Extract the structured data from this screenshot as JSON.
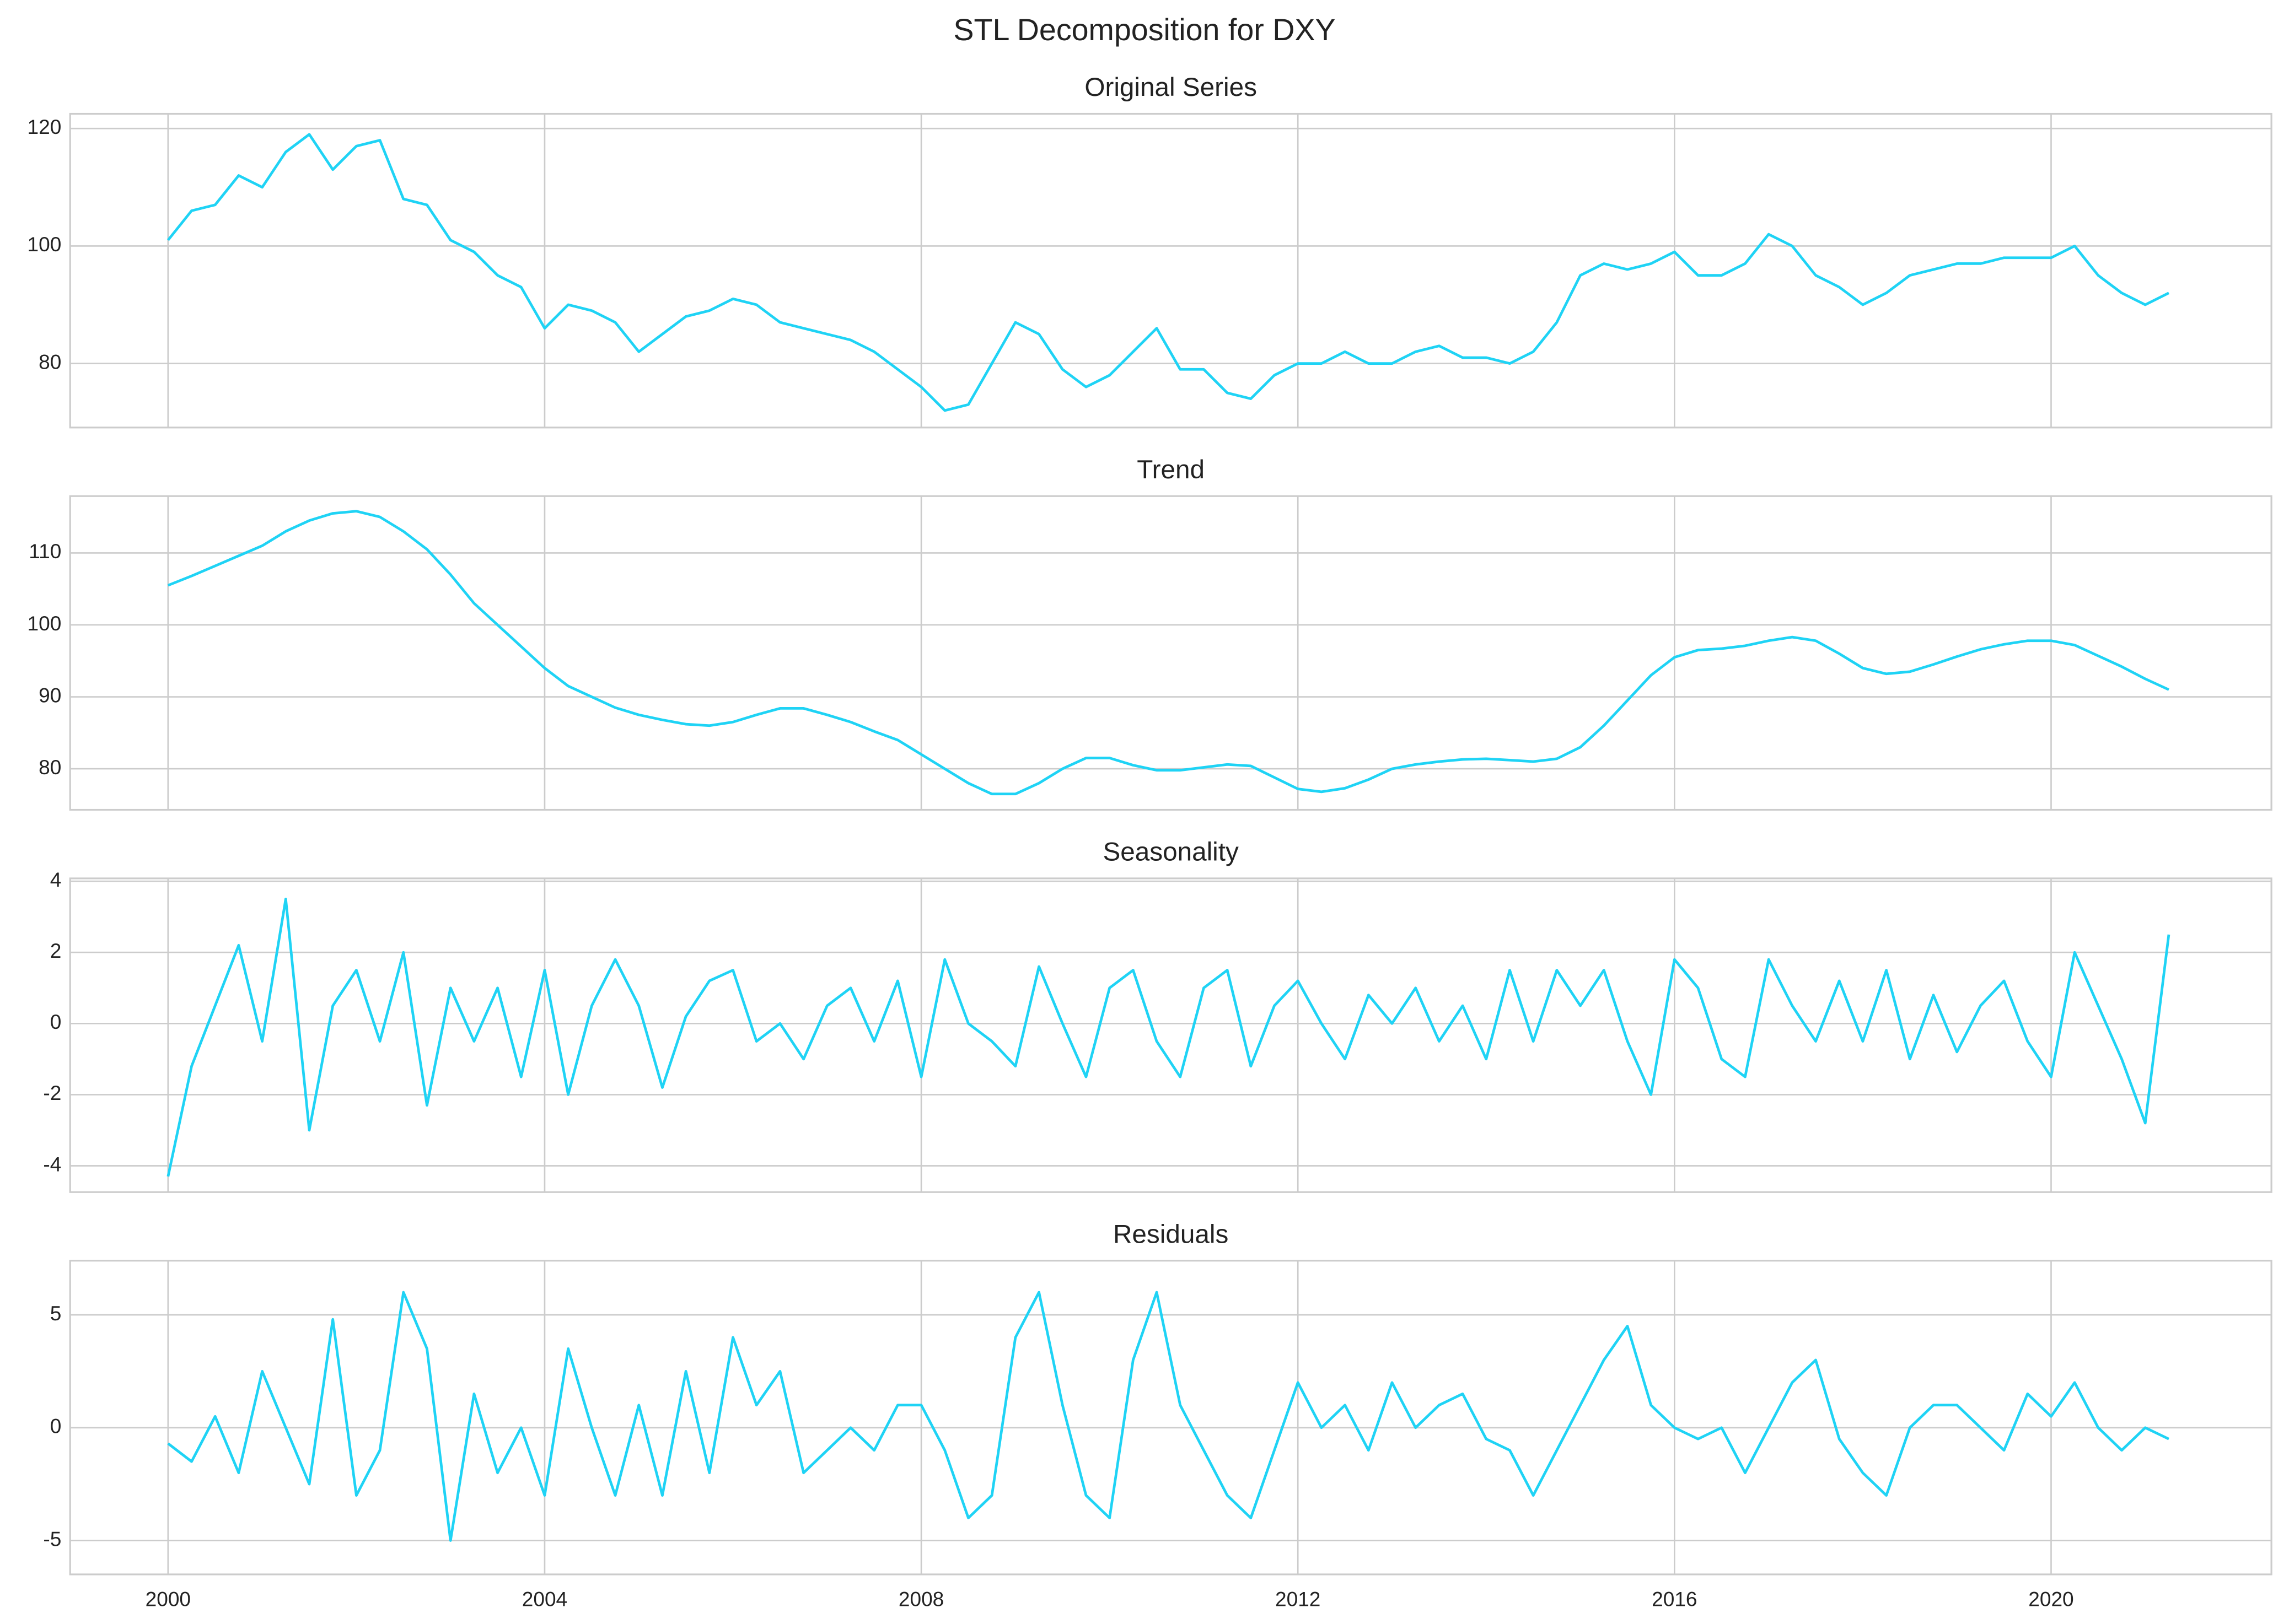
{
  "title": "STL Decomposition for DXY",
  "chart_data": [
    {
      "type": "line",
      "title": "Original Series",
      "color": "#1fd3f5",
      "grid": true,
      "x": [
        2000,
        2000.25,
        2000.5,
        2000.75,
        2001,
        2001.25,
        2001.5,
        2001.75,
        2002,
        2002.25,
        2002.5,
        2002.75,
        2003,
        2003.25,
        2003.5,
        2003.75,
        2004,
        2004.25,
        2004.5,
        2004.75,
        2005,
        2005.25,
        2005.5,
        2005.75,
        2006,
        2006.25,
        2006.5,
        2006.75,
        2007,
        2007.25,
        2007.5,
        2007.75,
        2008,
        2008.25,
        2008.5,
        2008.75,
        2009,
        2009.25,
        2009.5,
        2009.75,
        2010,
        2010.25,
        2010.5,
        2010.75,
        2011,
        2011.25,
        2011.5,
        2011.75,
        2012,
        2012.25,
        2012.5,
        2012.75,
        2013,
        2013.25,
        2013.5,
        2013.75,
        2014,
        2014.25,
        2014.5,
        2014.75,
        2015,
        2015.25,
        2015.5,
        2015.75,
        2016,
        2016.25,
        2016.5,
        2016.75,
        2017,
        2017.25,
        2017.5,
        2017.75,
        2018,
        2018.25,
        2018.5,
        2018.75,
        2019,
        2019.25,
        2019.5,
        2019.75,
        2020,
        2020.25,
        2020.5,
        2020.75,
        2021,
        2021.25
      ],
      "values": [
        101,
        106,
        107,
        112,
        110,
        116,
        119,
        113,
        117,
        118,
        108,
        107,
        101,
        99,
        95,
        93,
        86,
        90,
        89,
        87,
        82,
        85,
        88,
        89,
        91,
        90,
        87,
        86,
        85,
        84,
        82,
        79,
        76,
        72,
        73,
        80,
        87,
        85,
        79,
        76,
        78,
        82,
        86,
        79,
        79,
        75,
        74,
        78,
        80,
        80,
        82,
        80,
        80,
        82,
        83,
        81,
        81,
        80,
        82,
        87,
        95,
        97,
        96,
        97,
        99,
        95,
        95,
        97,
        102,
        100,
        95,
        93,
        90,
        92,
        95,
        96,
        97,
        97,
        98,
        98,
        98,
        100,
        95,
        92,
        90,
        92
      ],
      "ylim": [
        69.1,
        122.5
      ],
      "yticks": [
        80,
        100,
        120
      ]
    },
    {
      "type": "line",
      "title": "Trend",
      "color": "#1fd3f5",
      "grid": true,
      "x": [
        2000,
        2000.25,
        2000.5,
        2000.75,
        2001,
        2001.25,
        2001.5,
        2001.75,
        2002,
        2002.25,
        2002.5,
        2002.75,
        2003,
        2003.25,
        2003.5,
        2003.75,
        2004,
        2004.25,
        2004.5,
        2004.75,
        2005,
        2005.25,
        2005.5,
        2005.75,
        2006,
        2006.25,
        2006.5,
        2006.75,
        2007,
        2007.25,
        2007.5,
        2007.75,
        2008,
        2008.25,
        2008.5,
        2008.75,
        2009,
        2009.25,
        2009.5,
        2009.75,
        2010,
        2010.25,
        2010.5,
        2010.75,
        2011,
        2011.25,
        2011.5,
        2011.75,
        2012,
        2012.25,
        2012.5,
        2012.75,
        2013,
        2013.25,
        2013.5,
        2013.75,
        2014,
        2014.25,
        2014.5,
        2014.75,
        2015,
        2015.25,
        2015.5,
        2015.75,
        2016,
        2016.25,
        2016.5,
        2016.75,
        2017,
        2017.25,
        2017.5,
        2017.75,
        2018,
        2018.25,
        2018.5,
        2018.75,
        2019,
        2019.25,
        2019.5,
        2019.75,
        2020,
        2020.25,
        2020.5,
        2020.75,
        2021,
        2021.25
      ],
      "values": [
        105.5,
        106.8,
        108.2,
        109.6,
        111,
        113,
        114.5,
        115.5,
        115.8,
        115,
        113,
        110.5,
        107,
        103,
        100,
        97,
        94,
        91.5,
        90,
        88.5,
        87.5,
        86.8,
        86.2,
        86,
        86.5,
        87.5,
        88.4,
        88.4,
        87.5,
        86.5,
        85.2,
        84,
        82,
        80,
        78,
        76.5,
        76.5,
        78,
        80,
        81.5,
        81.5,
        80.5,
        79.8,
        79.8,
        80.2,
        80.6,
        80.4,
        78.8,
        77.2,
        76.8,
        77.3,
        78.5,
        80,
        80.6,
        81,
        81.3,
        81.4,
        81.2,
        81,
        81.4,
        83,
        86,
        89.5,
        93,
        95.5,
        96.5,
        96.7,
        97.1,
        97.8,
        98.3,
        97.8,
        96,
        94,
        93.2,
        93.5,
        94.5,
        95.6,
        96.6,
        97.3,
        97.8,
        97.8,
        97.2,
        95.7,
        94.2,
        92.5,
        91
      ],
      "ylim": [
        74.3,
        117.9
      ],
      "yticks": [
        80,
        90,
        100,
        110
      ]
    },
    {
      "type": "line",
      "title": "Seasonality",
      "color": "#1fd3f5",
      "grid": true,
      "x": [
        2000,
        2000.25,
        2000.5,
        2000.75,
        2001,
        2001.25,
        2001.5,
        2001.75,
        2002,
        2002.25,
        2002.5,
        2002.75,
        2003,
        2003.25,
        2003.5,
        2003.75,
        2004,
        2004.25,
        2004.5,
        2004.75,
        2005,
        2005.25,
        2005.5,
        2005.75,
        2006,
        2006.25,
        2006.5,
        2006.75,
        2007,
        2007.25,
        2007.5,
        2007.75,
        2008,
        2008.25,
        2008.5,
        2008.75,
        2009,
        2009.25,
        2009.5,
        2009.75,
        2010,
        2010.25,
        2010.5,
        2010.75,
        2011,
        2011.25,
        2011.5,
        2011.75,
        2012,
        2012.25,
        2012.5,
        2012.75,
        2013,
        2013.25,
        2013.5,
        2013.75,
        2014,
        2014.25,
        2014.5,
        2014.75,
        2015,
        2015.25,
        2015.5,
        2015.75,
        2016,
        2016.25,
        2016.5,
        2016.75,
        2017,
        2017.25,
        2017.5,
        2017.75,
        2018,
        2018.25,
        2018.5,
        2018.75,
        2019,
        2019.25,
        2019.5,
        2019.75,
        2020,
        2020.25,
        2020.5,
        2020.75,
        2021,
        2021.25
      ],
      "values": [
        -4.3,
        -1.2,
        0.5,
        2.2,
        -0.5,
        3.5,
        -3,
        0.5,
        1.5,
        -0.5,
        2,
        -2.3,
        1,
        -0.5,
        1,
        -1.5,
        1.5,
        -2,
        0.5,
        1.8,
        0.5,
        -1.8,
        0.2,
        1.2,
        1.5,
        -0.5,
        0,
        -1,
        0.5,
        1,
        -0.5,
        1.2,
        -1.5,
        1.8,
        0,
        -0.5,
        -1.2,
        1.6,
        0,
        -1.5,
        1,
        1.5,
        -0.5,
        -1.5,
        1,
        1.5,
        -1.2,
        0.5,
        1.2,
        0,
        -1,
        0.8,
        0,
        1,
        -0.5,
        0.5,
        -1,
        1.5,
        -0.5,
        1.5,
        0.5,
        1.5,
        -0.5,
        -2,
        1.8,
        1,
        -1,
        -1.5,
        1.8,
        0.5,
        -0.5,
        1.2,
        -0.5,
        1.5,
        -1,
        0.8,
        -0.8,
        0.5,
        1.2,
        -0.5,
        -1.5,
        2,
        0.5,
        -1,
        -2.8,
        2.5
      ],
      "ylim": [
        -4.74,
        4.08
      ],
      "yticks": [
        -4,
        -2,
        0,
        2,
        4
      ]
    },
    {
      "type": "line",
      "title": "Residuals",
      "color": "#1fd3f5",
      "grid": true,
      "x": [
        2000,
        2000.25,
        2000.5,
        2000.75,
        2001,
        2001.25,
        2001.5,
        2001.75,
        2002,
        2002.25,
        2002.5,
        2002.75,
        2003,
        2003.25,
        2003.5,
        2003.75,
        2004,
        2004.25,
        2004.5,
        2004.75,
        2005,
        2005.25,
        2005.5,
        2005.75,
        2006,
        2006.25,
        2006.5,
        2006.75,
        2007,
        2007.25,
        2007.5,
        2007.75,
        2008,
        2008.25,
        2008.5,
        2008.75,
        2009,
        2009.25,
        2009.5,
        2009.75,
        2010,
        2010.25,
        2010.5,
        2010.75,
        2011,
        2011.25,
        2011.5,
        2011.75,
        2012,
        2012.25,
        2012.5,
        2012.75,
        2013,
        2013.25,
        2013.5,
        2013.75,
        2014,
        2014.25,
        2014.5,
        2014.75,
        2015,
        2015.25,
        2015.5,
        2015.75,
        2016,
        2016.25,
        2016.5,
        2016.75,
        2017,
        2017.25,
        2017.5,
        2017.75,
        2018,
        2018.25,
        2018.5,
        2018.75,
        2019,
        2019.25,
        2019.5,
        2019.75,
        2020,
        2020.25,
        2020.5,
        2020.75,
        2021,
        2021.25
      ],
      "values": [
        -0.7,
        -1.5,
        0.5,
        -2,
        2.5,
        0,
        -2.5,
        4.8,
        -3,
        -1,
        6,
        3.5,
        -5,
        1.5,
        -2,
        0,
        -3,
        3.5,
        0,
        -3,
        1,
        -3,
        2.5,
        -2,
        4,
        1,
        2.5,
        -2,
        -1,
        0,
        -1,
        1,
        1,
        -1,
        -4,
        -3,
        4,
        6,
        1,
        -3,
        -4,
        3,
        6,
        1,
        -1,
        -3,
        -4,
        -1,
        2,
        0,
        1,
        -1,
        2,
        0,
        1,
        1.5,
        -0.5,
        -1,
        -3,
        -1,
        1,
        3,
        4.5,
        1,
        0,
        -0.5,
        0,
        -2,
        0,
        2,
        3,
        -0.5,
        -2,
        -3,
        0,
        1,
        1,
        0,
        -1,
        1.5,
        0.5,
        2,
        0,
        -1,
        0,
        -0.5
      ],
      "ylim": [
        -6.5,
        7.4
      ],
      "yticks": [
        -5,
        0,
        5
      ],
      "xlim": [
        1998.96,
        2022.34
      ],
      "xticks": [
        2000,
        2004,
        2008,
        2012,
        2016,
        2020
      ]
    }
  ]
}
